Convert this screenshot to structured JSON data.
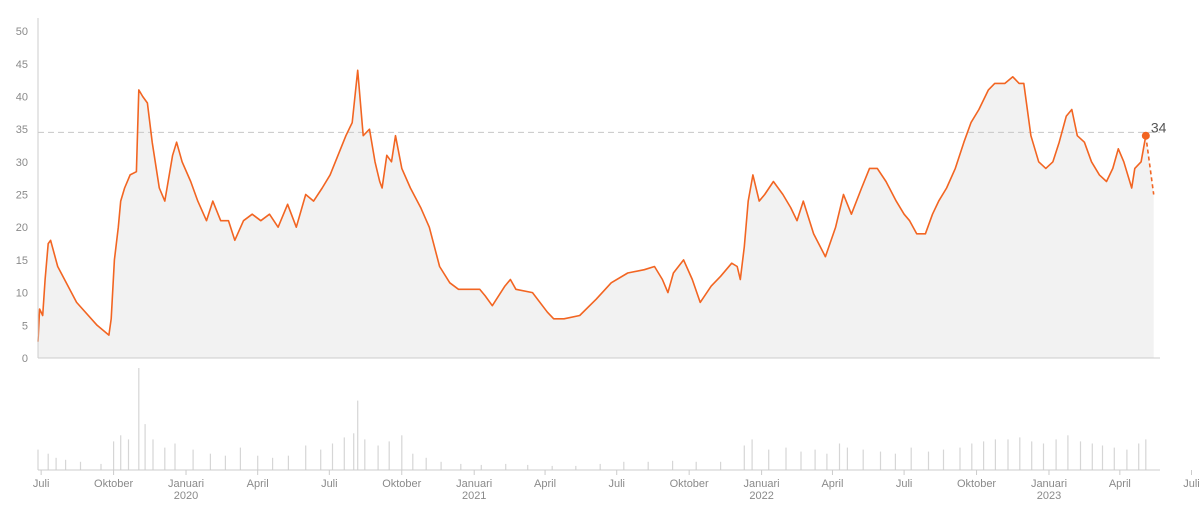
{
  "colors": {
    "accent": "#f26522",
    "area_fill": "#f2f2f2",
    "reference": "#c8c8c8",
    "axis": "#cccccc",
    "volume": "#d6d6d6"
  },
  "chart_data": {
    "type": "area",
    "title": "",
    "xlabel": "",
    "ylabel": "",
    "ylim": [
      0,
      52
    ],
    "y_ticks": [
      "0",
      "5",
      "10",
      "15",
      "20",
      "25",
      "30",
      "35",
      "40",
      "45",
      "50"
    ],
    "x_ticks": [
      {
        "label": "Juli",
        "year": "",
        "date": "2019-07-01"
      },
      {
        "label": "Oktober",
        "year": "",
        "date": "2019-10-01"
      },
      {
        "label": "Januari",
        "year": "2020",
        "date": "2020-01-01"
      },
      {
        "label": "April",
        "year": "",
        "date": "2020-04-01"
      },
      {
        "label": "Juli",
        "year": "",
        "date": "2020-07-01"
      },
      {
        "label": "Oktober",
        "year": "",
        "date": "2020-10-01"
      },
      {
        "label": "Januari",
        "year": "2021",
        "date": "2021-01-01"
      },
      {
        "label": "April",
        "year": "",
        "date": "2021-04-01"
      },
      {
        "label": "Juli",
        "year": "",
        "date": "2021-07-01"
      },
      {
        "label": "Oktober",
        "year": "",
        "date": "2021-10-01"
      },
      {
        "label": "Januari",
        "year": "2022",
        "date": "2022-01-01"
      },
      {
        "label": "April",
        "year": "",
        "date": "2022-04-01"
      },
      {
        "label": "Juli",
        "year": "",
        "date": "2022-07-01"
      },
      {
        "label": "Oktober",
        "year": "",
        "date": "2022-10-01"
      },
      {
        "label": "Januari",
        "year": "2023",
        "date": "2023-01-01"
      },
      {
        "label": "April",
        "year": "",
        "date": "2023-04-01"
      },
      {
        "label": "Juli",
        "year": "",
        "date": "2023-07-01"
      }
    ],
    "reference_value": 34.5,
    "end_label": "34",
    "series": [
      {
        "points": [
          [
            "2019-06-27",
            2.5
          ],
          [
            "2019-06-29",
            7.5
          ],
          [
            "2019-07-03",
            6.5
          ],
          [
            "2019-07-06",
            12
          ],
          [
            "2019-07-10",
            17.5
          ],
          [
            "2019-07-13",
            18
          ],
          [
            "2019-07-22",
            14
          ],
          [
            "2019-08-15",
            8.5
          ],
          [
            "2019-09-10",
            5
          ],
          [
            "2019-09-25",
            3.5
          ],
          [
            "2019-09-28",
            6
          ],
          [
            "2019-10-02",
            15
          ],
          [
            "2019-10-07",
            20
          ],
          [
            "2019-10-10",
            24
          ],
          [
            "2019-10-15",
            26
          ],
          [
            "2019-10-22",
            28
          ],
          [
            "2019-10-30",
            28.5
          ],
          [
            "2019-11-02",
            41
          ],
          [
            "2019-11-07",
            40
          ],
          [
            "2019-11-13",
            39
          ],
          [
            "2019-11-19",
            33
          ],
          [
            "2019-11-28",
            26
          ],
          [
            "2019-12-05",
            24
          ],
          [
            "2019-12-15",
            31
          ],
          [
            "2019-12-20",
            33
          ],
          [
            "2019-12-27",
            30
          ],
          [
            "2020-01-07",
            27
          ],
          [
            "2020-01-16",
            24
          ],
          [
            "2020-01-27",
            21
          ],
          [
            "2020-02-04",
            24
          ],
          [
            "2020-02-14",
            21
          ],
          [
            "2020-02-24",
            21
          ],
          [
            "2020-03-03",
            18
          ],
          [
            "2020-03-14",
            21
          ],
          [
            "2020-03-25",
            22
          ],
          [
            "2020-04-05",
            21
          ],
          [
            "2020-04-16",
            22
          ],
          [
            "2020-04-27",
            20
          ],
          [
            "2020-05-09",
            23.5
          ],
          [
            "2020-05-20",
            20
          ],
          [
            "2020-06-01",
            25
          ],
          [
            "2020-06-11",
            24
          ],
          [
            "2020-06-22",
            26
          ],
          [
            "2020-07-02",
            28
          ],
          [
            "2020-07-12",
            31
          ],
          [
            "2020-07-22",
            34
          ],
          [
            "2020-07-30",
            36
          ],
          [
            "2020-08-06",
            44
          ],
          [
            "2020-08-13",
            34
          ],
          [
            "2020-08-21",
            35
          ],
          [
            "2020-08-28",
            30
          ],
          [
            "2020-09-03",
            27
          ],
          [
            "2020-09-06",
            26
          ],
          [
            "2020-09-12",
            31
          ],
          [
            "2020-09-18",
            30
          ],
          [
            "2020-09-23",
            34
          ],
          [
            "2020-10-01",
            29
          ],
          [
            "2020-10-12",
            26
          ],
          [
            "2020-10-25",
            23
          ],
          [
            "2020-11-05",
            20
          ],
          [
            "2020-11-18",
            14
          ],
          [
            "2020-12-01",
            11.5
          ],
          [
            "2020-12-12",
            10.5
          ],
          [
            "2021-01-08",
            10.5
          ],
          [
            "2021-01-15",
            9.5
          ],
          [
            "2021-01-24",
            8
          ],
          [
            "2021-02-09",
            11
          ],
          [
            "2021-02-16",
            12
          ],
          [
            "2021-02-23",
            10.5
          ],
          [
            "2021-03-16",
            10
          ],
          [
            "2021-04-04",
            7
          ],
          [
            "2021-04-12",
            6
          ],
          [
            "2021-04-25",
            6
          ],
          [
            "2021-05-15",
            6.5
          ],
          [
            "2021-06-05",
            9
          ],
          [
            "2021-06-24",
            11.5
          ],
          [
            "2021-07-15",
            13
          ],
          [
            "2021-08-05",
            13.5
          ],
          [
            "2021-08-18",
            14
          ],
          [
            "2021-08-28",
            12
          ],
          [
            "2021-09-04",
            10
          ],
          [
            "2021-09-11",
            13
          ],
          [
            "2021-09-24",
            15
          ],
          [
            "2021-10-05",
            12
          ],
          [
            "2021-10-15",
            8.5
          ],
          [
            "2021-10-29",
            11
          ],
          [
            "2021-11-10",
            12.5
          ],
          [
            "2021-11-24",
            14.5
          ],
          [
            "2021-12-01",
            14
          ],
          [
            "2021-12-05",
            12
          ],
          [
            "2021-12-10",
            17
          ],
          [
            "2021-12-15",
            24
          ],
          [
            "2021-12-21",
            28
          ],
          [
            "2021-12-29",
            24
          ],
          [
            "2022-01-05",
            25
          ],
          [
            "2022-01-16",
            27
          ],
          [
            "2022-01-28",
            25
          ],
          [
            "2022-02-07",
            23
          ],
          [
            "2022-02-15",
            21
          ],
          [
            "2022-02-23",
            24
          ],
          [
            "2022-03-08",
            19
          ],
          [
            "2022-03-23",
            15.5
          ],
          [
            "2022-04-05",
            20
          ],
          [
            "2022-04-15",
            25
          ],
          [
            "2022-04-25",
            22
          ],
          [
            "2022-05-08",
            26
          ],
          [
            "2022-05-18",
            29
          ],
          [
            "2022-05-28",
            29
          ],
          [
            "2022-06-08",
            27
          ],
          [
            "2022-06-21",
            24
          ],
          [
            "2022-07-01",
            22
          ],
          [
            "2022-07-08",
            21
          ],
          [
            "2022-07-17",
            19
          ],
          [
            "2022-07-28",
            19
          ],
          [
            "2022-08-06",
            22
          ],
          [
            "2022-08-14",
            24
          ],
          [
            "2022-08-24",
            26
          ],
          [
            "2022-09-04",
            29
          ],
          [
            "2022-09-15",
            33
          ],
          [
            "2022-09-24",
            36
          ],
          [
            "2022-10-04",
            38
          ],
          [
            "2022-10-16",
            41
          ],
          [
            "2022-10-24",
            42
          ],
          [
            "2022-11-06",
            42
          ],
          [
            "2022-11-16",
            43
          ],
          [
            "2022-11-24",
            42
          ],
          [
            "2022-11-30",
            42
          ],
          [
            "2022-12-09",
            34
          ],
          [
            "2022-12-19",
            30
          ],
          [
            "2022-12-28",
            29
          ],
          [
            "2023-01-06",
            30
          ],
          [
            "2023-01-14",
            33
          ],
          [
            "2023-01-23",
            37
          ],
          [
            "2023-01-30",
            38
          ],
          [
            "2023-02-06",
            34
          ],
          [
            "2023-02-15",
            33
          ],
          [
            "2023-02-24",
            30
          ],
          [
            "2023-03-06",
            28
          ],
          [
            "2023-03-15",
            27
          ],
          [
            "2023-03-23",
            29
          ],
          [
            "2023-03-30",
            32
          ],
          [
            "2023-04-06",
            30
          ],
          [
            "2023-04-16",
            26
          ],
          [
            "2023-04-20",
            29
          ],
          [
            "2023-04-28",
            30
          ],
          [
            "2023-05-04",
            34
          ]
        ],
        "forecast": [
          [
            "2023-05-04",
            34
          ],
          [
            "2023-05-14",
            25
          ]
        ]
      }
    ],
    "volume_ylim": [
      0,
      100
    ],
    "volume": [
      {
        "date": "2019-06-27",
        "v": 20
      },
      {
        "date": "2019-07-10",
        "v": 16
      },
      {
        "date": "2019-07-20",
        "v": 12
      },
      {
        "date": "2019-08-01",
        "v": 10
      },
      {
        "date": "2019-08-20",
        "v": 8
      },
      {
        "date": "2019-09-15",
        "v": 6
      },
      {
        "date": "2019-10-01",
        "v": 28
      },
      {
        "date": "2019-10-10",
        "v": 34
      },
      {
        "date": "2019-10-20",
        "v": 30
      },
      {
        "date": "2019-11-02",
        "v": 100
      },
      {
        "date": "2019-11-10",
        "v": 45
      },
      {
        "date": "2019-11-20",
        "v": 30
      },
      {
        "date": "2019-12-05",
        "v": 22
      },
      {
        "date": "2019-12-18",
        "v": 26
      },
      {
        "date": "2020-01-10",
        "v": 20
      },
      {
        "date": "2020-02-01",
        "v": 16
      },
      {
        "date": "2020-02-20",
        "v": 14
      },
      {
        "date": "2020-03-10",
        "v": 22
      },
      {
        "date": "2020-04-01",
        "v": 14
      },
      {
        "date": "2020-04-20",
        "v": 12
      },
      {
        "date": "2020-05-10",
        "v": 14
      },
      {
        "date": "2020-06-01",
        "v": 24
      },
      {
        "date": "2020-06-20",
        "v": 20
      },
      {
        "date": "2020-07-05",
        "v": 26
      },
      {
        "date": "2020-07-20",
        "v": 32
      },
      {
        "date": "2020-08-01",
        "v": 36
      },
      {
        "date": "2020-08-06",
        "v": 68
      },
      {
        "date": "2020-08-15",
        "v": 30
      },
      {
        "date": "2020-09-01",
        "v": 24
      },
      {
        "date": "2020-09-15",
        "v": 28
      },
      {
        "date": "2020-10-01",
        "v": 34
      },
      {
        "date": "2020-10-15",
        "v": 16
      },
      {
        "date": "2020-11-01",
        "v": 12
      },
      {
        "date": "2020-11-20",
        "v": 8
      },
      {
        "date": "2020-12-15",
        "v": 6
      },
      {
        "date": "2021-01-10",
        "v": 5
      },
      {
        "date": "2021-02-10",
        "v": 6
      },
      {
        "date": "2021-03-10",
        "v": 5
      },
      {
        "date": "2021-04-10",
        "v": 4
      },
      {
        "date": "2021-05-10",
        "v": 4
      },
      {
        "date": "2021-06-10",
        "v": 6
      },
      {
        "date": "2021-07-10",
        "v": 8
      },
      {
        "date": "2021-08-10",
        "v": 8
      },
      {
        "date": "2021-09-10",
        "v": 9
      },
      {
        "date": "2021-10-10",
        "v": 8
      },
      {
        "date": "2021-11-10",
        "v": 8
      },
      {
        "date": "2021-12-10",
        "v": 24
      },
      {
        "date": "2021-12-20",
        "v": 30
      },
      {
        "date": "2022-01-10",
        "v": 20
      },
      {
        "date": "2022-02-01",
        "v": 22
      },
      {
        "date": "2022-02-20",
        "v": 18
      },
      {
        "date": "2022-03-10",
        "v": 20
      },
      {
        "date": "2022-03-25",
        "v": 16
      },
      {
        "date": "2022-04-10",
        "v": 26
      },
      {
        "date": "2022-04-20",
        "v": 22
      },
      {
        "date": "2022-05-10",
        "v": 20
      },
      {
        "date": "2022-06-01",
        "v": 18
      },
      {
        "date": "2022-06-20",
        "v": 16
      },
      {
        "date": "2022-07-10",
        "v": 22
      },
      {
        "date": "2022-08-01",
        "v": 18
      },
      {
        "date": "2022-08-20",
        "v": 20
      },
      {
        "date": "2022-09-10",
        "v": 22
      },
      {
        "date": "2022-09-25",
        "v": 26
      },
      {
        "date": "2022-10-10",
        "v": 28
      },
      {
        "date": "2022-10-25",
        "v": 30
      },
      {
        "date": "2022-11-10",
        "v": 30
      },
      {
        "date": "2022-11-25",
        "v": 32
      },
      {
        "date": "2022-12-10",
        "v": 28
      },
      {
        "date": "2022-12-25",
        "v": 26
      },
      {
        "date": "2023-01-10",
        "v": 30
      },
      {
        "date": "2023-01-25",
        "v": 34
      },
      {
        "date": "2023-02-10",
        "v": 28
      },
      {
        "date": "2023-02-25",
        "v": 26
      },
      {
        "date": "2023-03-10",
        "v": 24
      },
      {
        "date": "2023-03-25",
        "v": 22
      },
      {
        "date": "2023-04-10",
        "v": 20
      },
      {
        "date": "2023-04-25",
        "v": 26
      },
      {
        "date": "2023-05-04",
        "v": 30
      }
    ]
  }
}
